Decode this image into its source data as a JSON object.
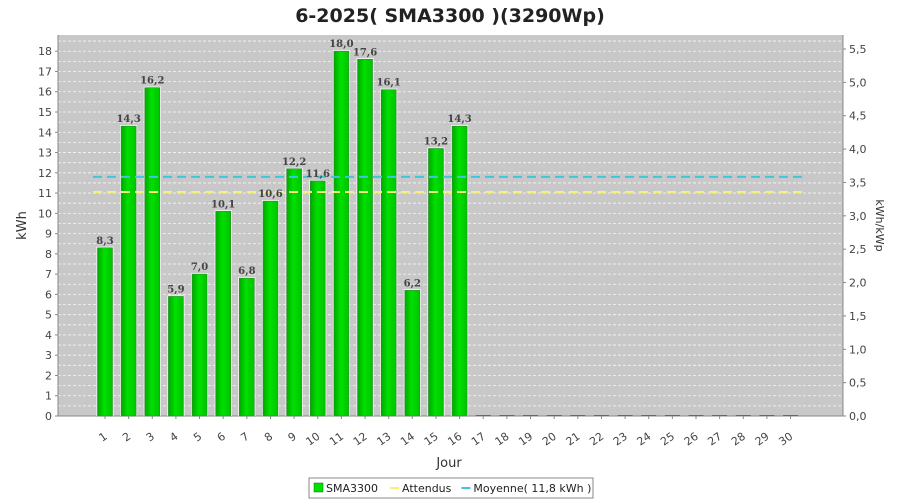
{
  "chart_data": {
    "type": "bar",
    "title": "6-2025( SMA3300 )(3290Wp)",
    "xlabel": "Jour",
    "ylabel": "kWh",
    "y2label": "kWh/kWp",
    "ylim": [
      0,
      18.8
    ],
    "y2lim": [
      0,
      5.71
    ],
    "yticks": [
      "0",
      "1",
      "2",
      "3",
      "4",
      "5",
      "6",
      "7",
      "8",
      "9",
      "10",
      "11",
      "12",
      "13",
      "14",
      "15",
      "16",
      "17",
      "18"
    ],
    "y2ticks": [
      "0,0",
      "0,5",
      "1,0",
      "1,5",
      "2,0",
      "2,5",
      "3,0",
      "3,5",
      "4,0",
      "4,5",
      "5,0",
      "5,5"
    ],
    "categories": [
      "1",
      "2",
      "3",
      "4",
      "5",
      "6",
      "7",
      "8",
      "9",
      "10",
      "11",
      "12",
      "13",
      "14",
      "15",
      "16",
      "17",
      "18",
      "19",
      "20",
      "21",
      "22",
      "23",
      "24",
      "25",
      "26",
      "27",
      "28",
      "29",
      "30"
    ],
    "series": [
      {
        "name": "SMA3300",
        "values": [
          8.3,
          14.3,
          16.2,
          5.9,
          7.0,
          10.1,
          6.8,
          10.6,
          12.2,
          11.6,
          18.0,
          17.6,
          16.1,
          6.2,
          13.2,
          14.3,
          0,
          0,
          0,
          0,
          0,
          0,
          0,
          0,
          0,
          0,
          0,
          0,
          0,
          0
        ],
        "labels": [
          "8,3",
          "14,3",
          "16,2",
          "5,9",
          "7,0",
          "10,1",
          "6,8",
          "10,6",
          "12,2",
          "11,6",
          "18,0",
          "17,6",
          "16,1",
          "6,2",
          "13,2",
          "14,3",
          "",
          "",
          "",
          "",
          "",
          "",
          "",
          "",
          "",
          "",
          "",
          "",
          "",
          ""
        ],
        "color": "#00e000"
      }
    ],
    "reference_lines": [
      {
        "name": "Attendus",
        "value": 11.05,
        "color": "#f5f07a"
      },
      {
        "name": "Moyenne( 11,8 kWh )",
        "value": 11.8,
        "color": "#3ec6dd"
      }
    ],
    "grid": true,
    "legend_position": "bottom",
    "plot_background": "#c8c8c8"
  }
}
